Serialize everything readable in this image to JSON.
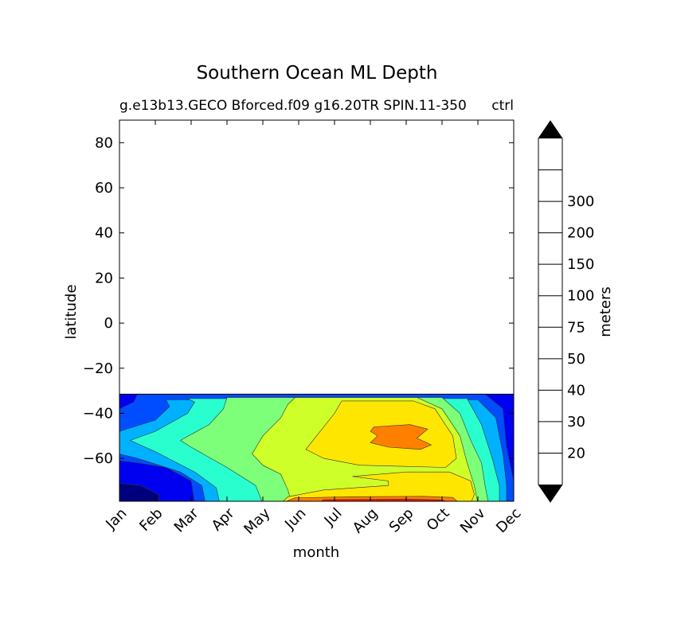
{
  "chart_data": {
    "type": "contourf",
    "title": "Southern Ocean ML Depth",
    "subtitle_left": "g.e13b13.GECO Bforced.f09 g16.20TR SPIN.11-350",
    "subtitle_right": "ctrl",
    "xlabel": "month",
    "ylabel": "latitude",
    "x_ticks": [
      "Jan",
      "Feb",
      "Mar",
      "Apr",
      "May",
      "Jun",
      "Jul",
      "Aug",
      "Sep",
      "Oct",
      "Nov",
      "Dec"
    ],
    "xlim": [
      0.5,
      11.5
    ],
    "y_ticks": [
      "80",
      "60",
      "40",
      "20",
      "0",
      "−20",
      "−40",
      "−60"
    ],
    "y_tick_values": [
      80,
      60,
      40,
      20,
      0,
      -20,
      -40,
      -60
    ],
    "ylim": [
      -79,
      90
    ],
    "data_lat_range": [
      -79,
      -31.5
    ],
    "colorbar": {
      "label": "meters",
      "levels": [
        "20",
        "30",
        "40",
        "50",
        "75",
        "100",
        "150",
        "200",
        "300"
      ],
      "colors": [
        "#00007f",
        "#0000f1",
        "#004dff",
        "#00b1ff",
        "#29ffce",
        "#7dff7a",
        "#ceff29",
        "#ffe600",
        "#ff7f00",
        "#ff1400",
        "#7f0000"
      ],
      "extend": "both",
      "under_color": "#000000",
      "over_color": "#000000"
    },
    "fields": [
      {
        "level": "10-20",
        "region": "Jan-Feb, lat -72 to -79"
      },
      {
        "level": "20-30",
        "region": "Dec edge and Jan, lat -31.5 to -38; Jan-Mar lat -62 to -79"
      },
      {
        "level": "30-40",
        "region": "Jan-Mar, lat -38 to -75"
      },
      {
        "level": "40-50",
        "region": "Jan-Apr band, lat -33 to -75"
      },
      {
        "level": "50-75",
        "region": "Mar-Nov, lat -33 to -79"
      },
      {
        "level": "75-100",
        "region": "Apr-Oct, lat -33 to -79"
      },
      {
        "level": "100-150",
        "region": "Jun-Oct, lat -35 to -63; Jul-Nov lat -65 to -79"
      },
      {
        "level": "150-200",
        "region": "Aug-Sep, lat -45 to -56; Jun-Oct lat -78"
      },
      {
        "level": "200-300",
        "region": "Jul-Sep, lat -78.5"
      }
    ]
  }
}
